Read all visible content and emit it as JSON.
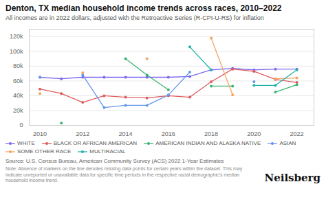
{
  "chart_data": {
    "type": "line",
    "title": "Denton, TX median household income trends across races, 2010–2022",
    "subtitle": "All incomes are in 2022 dollars, adjusted with the Retroactive Series (R-CPI-U-RS) for inflation",
    "source": "Source: U.S. Census Bureau, American Community Survey (ACS) 2022 1-Year Estimates",
    "note": "Note: Absence of markers on the line denotes missing data points for certain years within the dataset. This may indicate unreported or unavailable data for specific time periods in the respective racial demographic's median household income trend.",
    "brand": "Neilsberg",
    "x": [
      2010,
      2011,
      2012,
      2013,
      2014,
      2015,
      2016,
      2017,
      2018,
      2019,
      2020,
      2021,
      2022
    ],
    "series": [
      {
        "name": "WHITE",
        "color": "#7b68ee",
        "marker": "circle",
        "values": [
          65000,
          63000,
          65000,
          65000,
          65000,
          65000,
          65000,
          66000,
          75000,
          77000,
          75000,
          76000,
          76000
        ]
      },
      {
        "name": "BLACK OR AFRICAN AMERICAN",
        "color": "#e05c5c",
        "marker": "circle",
        "values": [
          49000,
          43000,
          31000,
          40000,
          38000,
          37000,
          40000,
          38000,
          59000,
          76000,
          73000,
          62000,
          58000
        ]
      },
      {
        "name": "AMERICAN INDIAN AND ALASKA NATIVE",
        "color": "#3cb371",
        "marker": "circle",
        "values": [
          null,
          3000,
          null,
          null,
          90000,
          68000,
          48000,
          null,
          53000,
          53000,
          null,
          45000,
          55000
        ]
      },
      {
        "name": "ASIAN",
        "color": "#6495ed",
        "marker": "circle",
        "values": [
          65000,
          null,
          68000,
          24000,
          27000,
          27000,
          41000,
          72000,
          null,
          null,
          59000,
          null,
          null
        ]
      },
      {
        "name": "SOME OTHER RACE",
        "color": "#f4a460",
        "marker": "circle",
        "values": [
          43000,
          null,
          71000,
          null,
          null,
          90000,
          null,
          null,
          118000,
          41000,
          null,
          63000,
          64000
        ]
      },
      {
        "name": "MULTIRACIAL",
        "color": "#20b2aa",
        "marker": "circle",
        "values": [
          null,
          null,
          null,
          null,
          null,
          null,
          null,
          106000,
          75000,
          null,
          54000,
          54000,
          75000
        ]
      }
    ],
    "xlim": [
      2009.5,
      2022.8
    ],
    "xticks": [
      2010,
      2012,
      2014,
      2016,
      2018,
      2020,
      2022
    ],
    "ylim": [
      0,
      130000
    ],
    "yticks": [
      0,
      {
        "value": 20000,
        "label": "20k"
      },
      {
        "value": 40000,
        "label": "40k"
      },
      {
        "value": 60000,
        "label": "60k"
      },
      {
        "value": 80000,
        "label": "80k"
      },
      {
        "value": 100000,
        "label": "100k"
      },
      {
        "value": 120000,
        "label": "120k"
      }
    ],
    "grid": true,
    "legend": "bottom"
  }
}
